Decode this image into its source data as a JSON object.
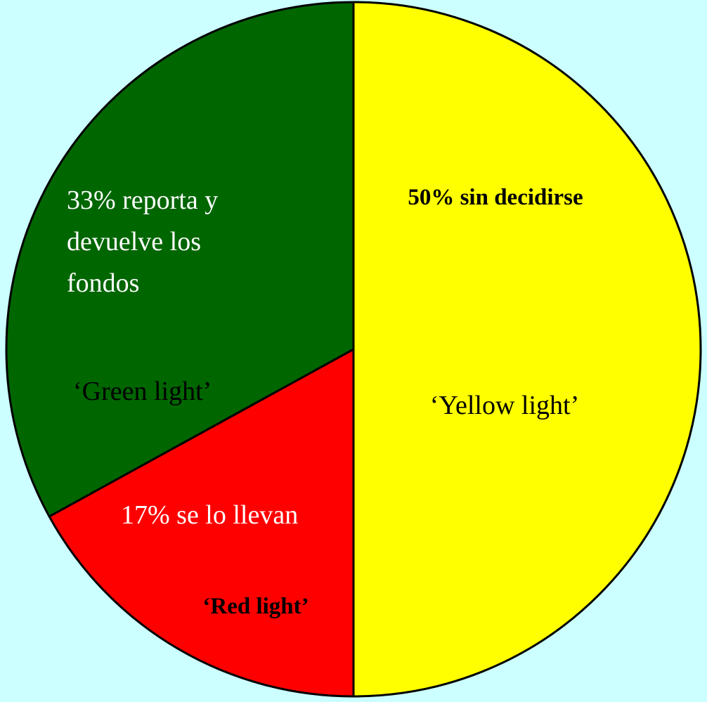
{
  "chart_data": {
    "type": "pie",
    "slices": [
      {
        "key": "yellow",
        "value": 50,
        "color": "#ffff00",
        "label": "50% sin decidirse",
        "sublabel": "‘Yellow light’",
        "label_color": "#000000",
        "sublabel_color": "#000000"
      },
      {
        "key": "red",
        "value": 17,
        "color": "#ff0000",
        "label": "17%  se lo llevan",
        "sublabel": "‘Red light’",
        "label_color": "#ffffff",
        "sublabel_color": "#000000"
      },
      {
        "key": "green",
        "value": 33,
        "color": "#006600",
        "label_lines": [
          "33% reporta y",
          "devuelve los",
          "fondos"
        ],
        "sublabel": "‘Green light’",
        "label_color": "#ffffff",
        "sublabel_color": "#000000"
      }
    ],
    "start_angle_deg": 0,
    "direction": "clockwise",
    "legend": "none",
    "background": "#ccffff",
    "edge_color": "#000000"
  }
}
